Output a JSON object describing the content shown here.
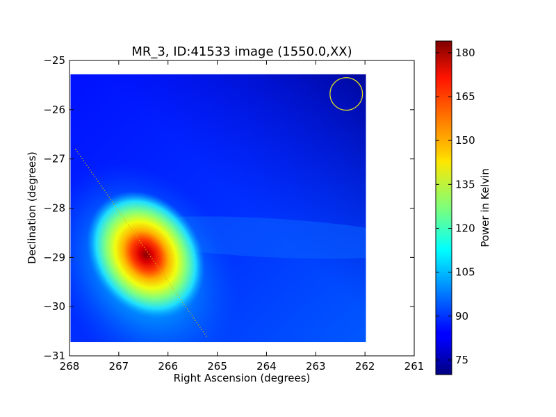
{
  "chart_data": {
    "type": "heatmap",
    "title": "MR_3, ID:41533 image (1550.0,XX)",
    "xlabel": "Right Ascension (degrees)",
    "ylabel": "Declination (degrees)",
    "xlim": [
      268,
      261
    ],
    "ylim": [
      -31,
      -25
    ],
    "x_ticks": [
      268,
      267,
      266,
      265,
      264,
      263,
      262,
      261
    ],
    "y_ticks": [
      -25,
      -26,
      -27,
      -28,
      -29,
      -30,
      -31
    ],
    "y_tick_labels": [
      "−25",
      "−26",
      "−27",
      "−28",
      "−29",
      "−30",
      "−31"
    ],
    "image_extent": {
      "ra": [
        267.98,
        261.98
      ],
      "dec": [
        -30.72,
        -25.28
      ]
    },
    "hotspot": {
      "ra": 266.45,
      "dec": -28.95,
      "peak_value": 182
    },
    "background_value": 85,
    "beam_circle": {
      "ra": 262.38,
      "dec": -25.68,
      "radius_deg": 0.33
    },
    "dotted_line": {
      "ra": [
        267.88,
        265.2
      ],
      "dec": [
        -26.8,
        -30.63
      ]
    },
    "colorbar": {
      "label": "Power in Kelvin",
      "min": 70,
      "max": 184,
      "ticks": [
        75,
        90,
        105,
        120,
        135,
        150,
        165,
        180
      ],
      "colormap": "jet"
    }
  }
}
